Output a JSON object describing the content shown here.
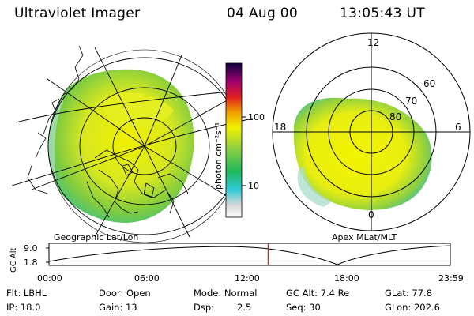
{
  "header": {
    "instrument": "Ultraviolet Imager",
    "date": "04 Aug 00",
    "time": "13:05:43 UT"
  },
  "colorbar": {
    "unit_label": "photon cm⁻²s⁻¹",
    "ticks": [
      "100",
      "10"
    ],
    "scale": "log"
  },
  "geo_panel": {
    "label": "Geographic Lat/Lon"
  },
  "apex_panel": {
    "label": "Apex MLat/MLT",
    "mlt_labels": {
      "top": "12",
      "bottom": "0",
      "left": "18",
      "right": "6"
    },
    "mlat_labels": [
      "60",
      "70",
      "80"
    ]
  },
  "altitude_plot": {
    "ylabel": "GC Alt",
    "y_ticks": [
      "9.0",
      "1.8"
    ],
    "x_ticks": [
      "00:00",
      "06:00",
      "12:00",
      "18:00",
      "23:59"
    ],
    "current_time_hours": 13.1,
    "marker_color": "#e02020"
  },
  "info": {
    "filter": "Flt: LBHL",
    "door": "Door: Open",
    "mode": "Mode: Normal",
    "gc_alt": "GC Alt: 7.4 Re",
    "glat": "GLat: 77.8",
    "ip": "IP: 18.0",
    "gain": "Gain: 13",
    "dsp_label": "Dsp:",
    "dsp_value": "2.5",
    "seq": "Seq: 30",
    "glon": "GLon: 202.6"
  }
}
